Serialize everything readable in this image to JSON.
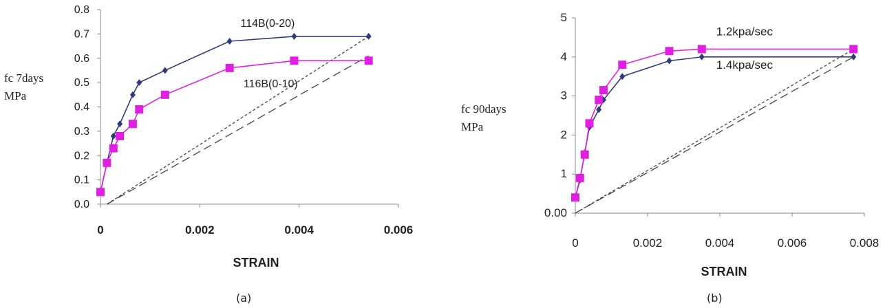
{
  "chart_data": [
    {
      "type": "line",
      "panel_label": "(a)",
      "xlabel": "STRAIN",
      "ylabel_lines": [
        "fc 7days",
        "MPa"
      ],
      "xlim": [
        0,
        0.006
      ],
      "ylim": [
        0,
        0.8
      ],
      "x_ticks": [
        "0",
        "0.002",
        "0.004",
        "0.006"
      ],
      "x_tick_values": [
        0,
        0.002,
        0.004,
        0.006
      ],
      "y_ticks": [
        "0.0",
        "0.1",
        "0.2",
        "0.3",
        "0.4",
        "0.5",
        "0.6",
        "0.7",
        "0.8"
      ],
      "y_tick_values": [
        0,
        0.1,
        0.2,
        0.3,
        0.4,
        0.5,
        0.6,
        0.7,
        0.8
      ],
      "series": [
        {
          "name": "114B(0-20)",
          "color": "#2e3a7a",
          "marker": "diamond",
          "x": [
            0.0,
            0.00013,
            0.00026,
            0.00039,
            0.00065,
            0.00078,
            0.0013,
            0.0026,
            0.0039,
            0.0054
          ],
          "y": [
            0.05,
            0.17,
            0.28,
            0.33,
            0.45,
            0.5,
            0.55,
            0.67,
            0.69,
            0.69
          ]
        },
        {
          "name": "116B(0-10)",
          "color": "#e020e0",
          "marker": "square",
          "x": [
            0.0,
            0.00013,
            0.00026,
            0.00039,
            0.00065,
            0.00078,
            0.0013,
            0.0026,
            0.0039,
            0.0054
          ],
          "y": [
            0.05,
            0.17,
            0.23,
            0.28,
            0.33,
            0.39,
            0.45,
            0.56,
            0.59,
            0.59
          ]
        }
      ],
      "ref_lines": [
        {
          "style": "short-dash",
          "x": [
            0.00013,
            0.0054
          ],
          "y": [
            0.0,
            0.69
          ]
        },
        {
          "style": "long-dash",
          "x": [
            0.00013,
            0.0054
          ],
          "y": [
            0.0,
            0.61
          ]
        }
      ],
      "annotations": [
        {
          "text": "114B(0-20)",
          "x": 0.00282,
          "y": 0.73
        },
        {
          "text": "116B(0-10)",
          "x": 0.00288,
          "y": 0.48
        }
      ]
    },
    {
      "type": "line",
      "panel_label": "(b)",
      "xlabel": "STRAIN",
      "ylabel_lines": [
        "fc 90days",
        "MPa"
      ],
      "xlim": [
        0,
        0.008
      ],
      "ylim": [
        0,
        5
      ],
      "x_ticks": [
        "0",
        "0.002",
        "0.004",
        "0.006",
        "0.008"
      ],
      "x_tick_values": [
        0,
        0.002,
        0.004,
        0.006,
        0.008
      ],
      "y_ticks": [
        "0.00",
        "1",
        "2",
        "3",
        "4",
        "5"
      ],
      "y_tick_values": [
        0,
        1,
        2,
        3,
        4,
        5
      ],
      "series": [
        {
          "name": "1.4kpa/sec",
          "color": "#2e3a7a",
          "marker": "diamond",
          "x": [
            0.0,
            0.00013,
            0.00026,
            0.00039,
            0.00065,
            0.00078,
            0.0013,
            0.0026,
            0.0035,
            0.0077
          ],
          "y": [
            0.4,
            0.85,
            1.55,
            2.2,
            2.65,
            2.9,
            3.5,
            3.9,
            4.0,
            4.0
          ]
        },
        {
          "name": "1.2kpa/sec",
          "color": "#e020e0",
          "marker": "square",
          "x": [
            0.0,
            0.00013,
            0.00026,
            0.00039,
            0.00065,
            0.00078,
            0.0013,
            0.0026,
            0.0035,
            0.0077
          ],
          "y": [
            0.4,
            0.9,
            1.5,
            2.3,
            2.9,
            3.15,
            3.8,
            4.15,
            4.2,
            4.2
          ]
        }
      ],
      "ref_lines": [
        {
          "style": "short-dash",
          "x": [
            0.0,
            0.0077
          ],
          "y": [
            0.0,
            4.2
          ]
        },
        {
          "style": "long-dash",
          "x": [
            0.0,
            0.0077
          ],
          "y": [
            0.0,
            4.0
          ]
        }
      ],
      "annotations": [
        {
          "text": "1.2kpa/sec",
          "x": 0.0039,
          "y": 4.55
        },
        {
          "text": "1.4kpa/sec",
          "x": 0.0039,
          "y": 3.7
        }
      ]
    }
  ]
}
